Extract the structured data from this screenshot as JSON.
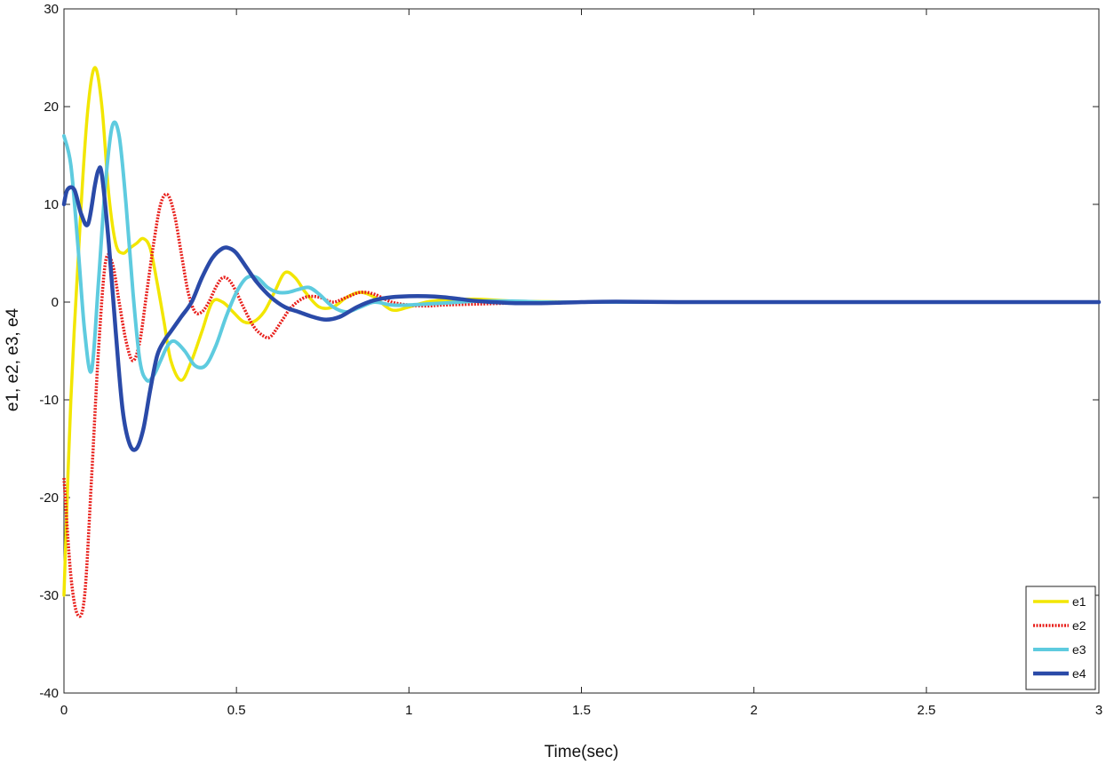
{
  "chart_data": {
    "type": "line",
    "title": "",
    "xlabel": "Time(sec)",
    "ylabel": "e1, e2, e3, e4",
    "xlim": [
      0,
      3
    ],
    "ylim": [
      -40,
      30
    ],
    "xticks": [
      0,
      0.5,
      1,
      1.5,
      2,
      2.5,
      3
    ],
    "xtick_labels": [
      "0",
      "0.5",
      "1",
      "1.5",
      "2",
      "2.5",
      "3"
    ],
    "yticks": [
      -40,
      -30,
      -20,
      -10,
      0,
      10,
      20,
      30
    ],
    "ytick_labels": [
      "-40",
      "-30",
      "-20",
      "-10",
      "0",
      "10",
      "20",
      "30"
    ],
    "grid": false,
    "legend_position": "bottom-right",
    "series": [
      {
        "name": "e1",
        "color": "#f2e600",
        "style": "solid",
        "x": [
          0,
          0.02,
          0.05,
          0.07,
          0.09,
          0.11,
          0.13,
          0.15,
          0.17,
          0.19,
          0.21,
          0.23,
          0.25,
          0.27,
          0.29,
          0.31,
          0.34,
          0.37,
          0.4,
          0.43,
          0.46,
          0.49,
          0.52,
          0.55,
          0.58,
          0.61,
          0.64,
          0.67,
          0.7,
          0.74,
          0.78,
          0.82,
          0.86,
          0.9,
          0.95,
          1.0,
          1.05,
          1.1,
          1.2,
          1.3,
          1.4,
          1.5,
          1.6,
          1.8,
          2.0,
          2.5,
          3.0
        ],
        "y": [
          -30,
          -10,
          10,
          20,
          24,
          20,
          11,
          6,
          5,
          5.5,
          6,
          6.5,
          5.5,
          2,
          -2,
          -6,
          -8,
          -6,
          -3,
          0,
          0,
          -1,
          -2,
          -2,
          -1,
          1,
          3,
          2.5,
          1,
          -0.5,
          -0.5,
          0.5,
          1,
          0.5,
          -0.8,
          -0.5,
          0,
          0.2,
          0.3,
          0.1,
          0.05,
          0,
          0,
          0,
          0,
          0,
          0
        ]
      },
      {
        "name": "e2",
        "color": "#e8201c",
        "style": "dotted",
        "x": [
          0,
          0.02,
          0.04,
          0.06,
          0.08,
          0.1,
          0.12,
          0.14,
          0.16,
          0.18,
          0.2,
          0.22,
          0.24,
          0.26,
          0.28,
          0.3,
          0.32,
          0.34,
          0.36,
          0.38,
          0.4,
          0.42,
          0.44,
          0.46,
          0.48,
          0.5,
          0.52,
          0.55,
          0.58,
          0.6,
          0.63,
          0.66,
          0.7,
          0.74,
          0.78,
          0.82,
          0.86,
          0.9,
          0.95,
          1.0,
          1.05,
          1.1,
          1.2,
          1.3,
          1.4,
          1.6,
          1.8,
          2.0,
          2.5,
          3.0
        ],
        "y": [
          -18,
          -28,
          -32,
          -30,
          -18,
          -5,
          4,
          4,
          0,
          -4,
          -6,
          -4,
          1,
          6,
          10,
          11,
          9,
          5,
          1,
          -1,
          -1,
          0,
          1.5,
          2.5,
          2.2,
          1,
          -0.5,
          -2.5,
          -3.5,
          -3.5,
          -2,
          -0.5,
          0.5,
          0.5,
          0,
          0.5,
          1,
          0.8,
          0,
          -0.3,
          -0.4,
          -0.3,
          -0.2,
          -0.1,
          0,
          0,
          0,
          0,
          0,
          0
        ]
      },
      {
        "name": "e3",
        "color": "#5ecbdf",
        "style": "solid",
        "x": [
          0,
          0.02,
          0.04,
          0.06,
          0.08,
          0.1,
          0.12,
          0.14,
          0.16,
          0.18,
          0.2,
          0.22,
          0.24,
          0.26,
          0.28,
          0.3,
          0.32,
          0.35,
          0.38,
          0.41,
          0.44,
          0.47,
          0.5,
          0.53,
          0.56,
          0.59,
          0.62,
          0.65,
          0.68,
          0.71,
          0.74,
          0.78,
          0.82,
          0.86,
          0.9,
          0.95,
          1.0,
          1.1,
          1.2,
          1.3,
          1.4,
          1.5,
          1.6,
          1.8,
          2.0,
          2.5,
          3.0
        ],
        "y": [
          17,
          14,
          6,
          -3,
          -7,
          2,
          12,
          18,
          17,
          10,
          1,
          -6,
          -8,
          -7.5,
          -6,
          -4.5,
          -4,
          -5,
          -6.5,
          -6.5,
          -4.5,
          -1.5,
          1,
          2.5,
          2.5,
          1.5,
          1,
          1,
          1.3,
          1.5,
          0.8,
          -0.5,
          -1,
          -0.5,
          0,
          -0.3,
          -0.3,
          -0.1,
          0.1,
          0.1,
          0,
          0,
          0,
          0,
          0,
          0,
          0
        ]
      },
      {
        "name": "e4",
        "color": "#2a4aa8",
        "style": "solid",
        "x": [
          0,
          0.01,
          0.03,
          0.05,
          0.07,
          0.09,
          0.1,
          0.11,
          0.13,
          0.15,
          0.17,
          0.19,
          0.21,
          0.23,
          0.25,
          0.27,
          0.29,
          0.31,
          0.34,
          0.37,
          0.4,
          0.43,
          0.46,
          0.48,
          0.5,
          0.53,
          0.56,
          0.6,
          0.64,
          0.68,
          0.72,
          0.76,
          0.8,
          0.85,
          0.9,
          0.95,
          1.0,
          1.05,
          1.1,
          1.15,
          1.2,
          1.3,
          1.4,
          1.5,
          1.6,
          1.8,
          2.0,
          2.5,
          3.0
        ],
        "y": [
          10,
          11.5,
          11.5,
          9,
          8,
          12,
          13.5,
          13,
          6,
          -3,
          -11,
          -14.5,
          -15,
          -13,
          -9,
          -5.5,
          -4,
          -3,
          -1.5,
          0,
          2.5,
          4.5,
          5.5,
          5.5,
          5,
          3.5,
          2,
          0.5,
          -0.5,
          -1,
          -1.5,
          -1.8,
          -1.5,
          -0.5,
          0.2,
          0.5,
          0.6,
          0.6,
          0.5,
          0.3,
          0.1,
          -0.1,
          -0.1,
          0,
          0.05,
          0,
          0,
          0,
          0
        ]
      }
    ]
  }
}
